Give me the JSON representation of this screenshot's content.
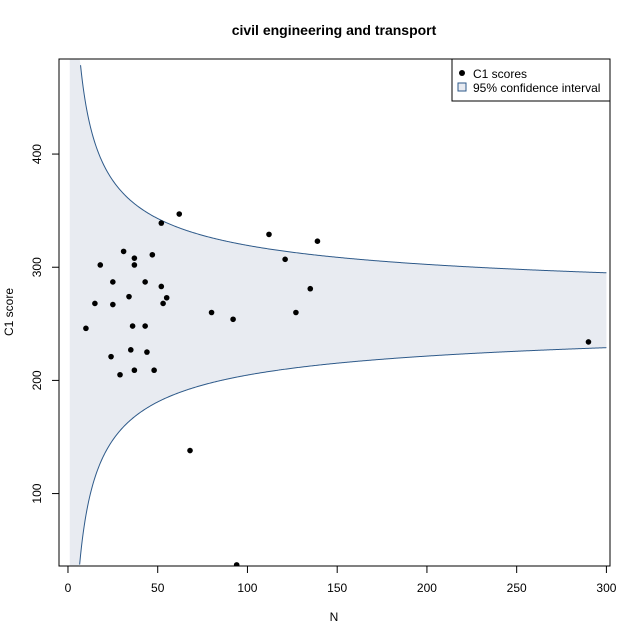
{
  "chart_data": {
    "type": "scatter",
    "title": "civil engineering and transport",
    "xlabel": "N",
    "ylabel": "C1 score",
    "xlim": [
      -5,
      302
    ],
    "ylim": [
      36,
      484
    ],
    "x_ticks": [
      0,
      50,
      100,
      150,
      200,
      250,
      300
    ],
    "y_ticks": [
      100,
      200,
      300,
      400
    ],
    "grid": false,
    "legend_position": "top-right",
    "legend": [
      {
        "label": "C1 scores",
        "marker": "point"
      },
      {
        "label": "95% confidence interval",
        "marker": "box"
      }
    ],
    "confidence_band": {
      "center": 262,
      "half_width_k": 573,
      "n_range": [
        1,
        300
      ],
      "fill_color": "#e8ebf1",
      "line_color": "#2e5a8a"
    },
    "series": [
      {
        "marker_color": "#000000",
        "points": [
          {
            "x": 10,
            "y": 246
          },
          {
            "x": 15,
            "y": 268
          },
          {
            "x": 18,
            "y": 302
          },
          {
            "x": 24,
            "y": 221
          },
          {
            "x": 25,
            "y": 287
          },
          {
            "x": 25,
            "y": 267
          },
          {
            "x": 29,
            "y": 205
          },
          {
            "x": 31,
            "y": 314
          },
          {
            "x": 34,
            "y": 274
          },
          {
            "x": 35,
            "y": 227
          },
          {
            "x": 36,
            "y": 248
          },
          {
            "x": 37,
            "y": 308
          },
          {
            "x": 37,
            "y": 302
          },
          {
            "x": 37,
            "y": 209
          },
          {
            "x": 43,
            "y": 287
          },
          {
            "x": 43,
            "y": 248
          },
          {
            "x": 44,
            "y": 225
          },
          {
            "x": 47,
            "y": 311
          },
          {
            "x": 48,
            "y": 209
          },
          {
            "x": 52,
            "y": 339
          },
          {
            "x": 52,
            "y": 283
          },
          {
            "x": 53,
            "y": 268
          },
          {
            "x": 55,
            "y": 273
          },
          {
            "x": 62,
            "y": 347
          },
          {
            "x": 68,
            "y": 138
          },
          {
            "x": 80,
            "y": 260
          },
          {
            "x": 92,
            "y": 254
          },
          {
            "x": 94,
            "y": 37
          },
          {
            "x": 112,
            "y": 329
          },
          {
            "x": 121,
            "y": 307
          },
          {
            "x": 127,
            "y": 260
          },
          {
            "x": 135,
            "y": 281
          },
          {
            "x": 139,
            "y": 323
          },
          {
            "x": 290,
            "y": 234
          }
        ]
      }
    ]
  }
}
